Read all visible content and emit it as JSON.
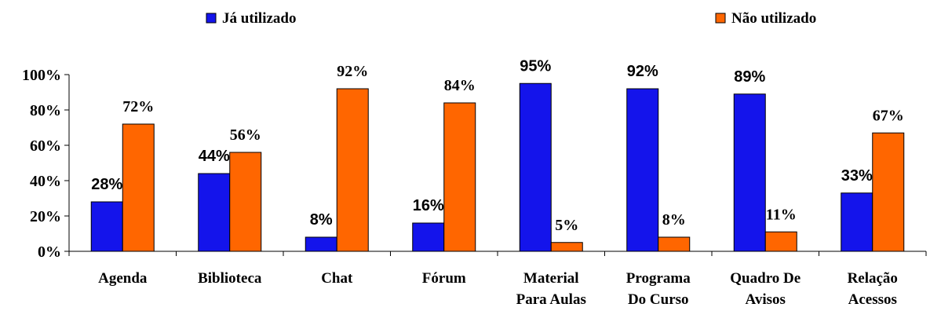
{
  "chart_data": {
    "type": "bar",
    "categories": [
      [
        "Agenda"
      ],
      [
        "Biblioteca"
      ],
      [
        "Chat"
      ],
      [
        "Fórum"
      ],
      [
        "Material",
        "Para Aulas"
      ],
      [
        "Programa",
        "Do Curso"
      ],
      [
        "Quadro De",
        "Avisos"
      ],
      [
        "Relação",
        "Acessos"
      ]
    ],
    "series": [
      {
        "name": "Já utilizado",
        "color": "#1414EB",
        "values": [
          28,
          44,
          8,
          16,
          95,
          92,
          89,
          33
        ],
        "labels": [
          "28%",
          "44%",
          "8%",
          "16%",
          "95%",
          "92%",
          "89%",
          "33%"
        ]
      },
      {
        "name": "Não utilizado",
        "color": "#FF6600",
        "values": [
          72,
          56,
          92,
          84,
          5,
          8,
          11,
          67
        ],
        "labels": [
          "72%",
          "56%",
          "92%",
          "84%",
          "5%",
          "8%",
          "11%",
          "67%"
        ]
      }
    ],
    "y_ticks": [
      "0%",
      "20%",
      "40%",
      "60%",
      "80%",
      "100%"
    ],
    "ylim": [
      0,
      100
    ],
    "legend_position": "top",
    "grid": false
  }
}
